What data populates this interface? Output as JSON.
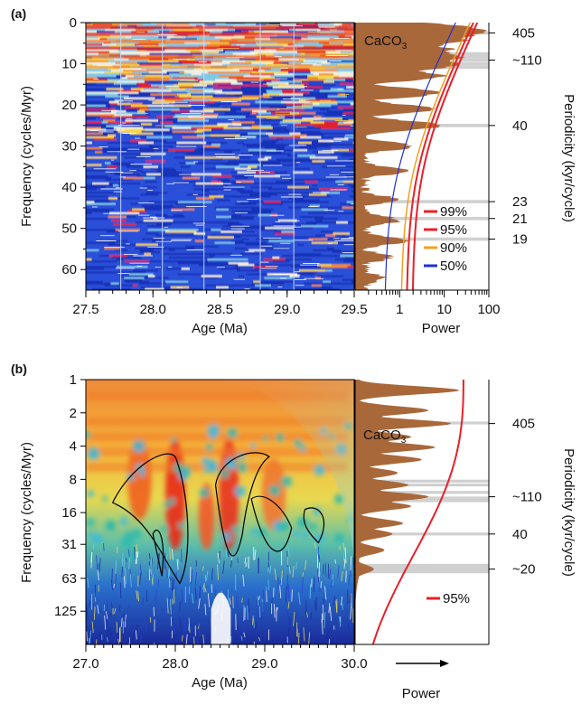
{
  "chart_data": [
    {
      "panel": "(a)",
      "type": "heatmap",
      "xlabel": "Age (Ma)",
      "ylabel": "Frequency (cycles/Myr)",
      "xticks": [
        "27.5",
        "28.0",
        "28.5",
        "29.0",
        "29.5"
      ],
      "xlim": [
        27.5,
        29.5
      ],
      "yticks": [
        "0",
        "10",
        "20",
        "30",
        "40",
        "50",
        "60"
      ],
      "ylim": [
        0,
        65
      ],
      "spectrum": {
        "label_main": "CaCO",
        "label_sub": "3",
        "xlabel": "Power",
        "xscale": "log",
        "xticks": [
          "1",
          "10",
          "100"
        ],
        "xlim": [
          0.1,
          100
        ],
        "confidence_levels": [
          {
            "name": "99%",
            "color": "#e8202a"
          },
          {
            "name": "95%",
            "color": "#e8202a"
          },
          {
            "name": "90%",
            "color": "#f0a020"
          },
          {
            "name": "50%",
            "color": "#2030d0"
          }
        ]
      },
      "right_axis": {
        "label": "Periodicity (kyr/cycle)",
        "ticks": [
          {
            "label": "405",
            "freq": 2.5
          },
          {
            "label": "~110",
            "freq": 9.1
          },
          {
            "label": "40",
            "freq": 25
          },
          {
            "label": "23",
            "freq": 43.5
          },
          {
            "label": "21",
            "freq": 47.6
          },
          {
            "label": "19",
            "freq": 52.6
          }
        ],
        "highlight_freqs": [
          2.5,
          7.6,
          8.3,
          9.1,
          10.0,
          10.8,
          25,
          43.5,
          47.6,
          52.6
        ]
      }
    },
    {
      "panel": "(b)",
      "type": "heatmap",
      "xlabel": "Age (Ma)",
      "ylabel": "Frequency (cycles/Myr)",
      "xticks": [
        "27.0",
        "28.0",
        "29.0",
        "30.0"
      ],
      "xlim": [
        27.0,
        30.0
      ],
      "yticks": [
        "1",
        "2",
        "4",
        "8",
        "16",
        "31",
        "63",
        "125"
      ],
      "yscale": "log",
      "ylim": [
        1,
        250
      ],
      "spectrum": {
        "label_main": "CaCO",
        "label_sub": "3",
        "xlabel": "Power",
        "arrow": "→",
        "confidence_levels": [
          {
            "name": "95%",
            "color": "#e8202a"
          }
        ]
      },
      "right_axis": {
        "label": "Periodicity (kyr/cycle)",
        "ticks": [
          {
            "label": "405",
            "freq": 2.5
          },
          {
            "label": "~110",
            "freq": 11.5
          },
          {
            "label": "40",
            "freq": 25
          },
          {
            "label": "~20",
            "freq": 52
          }
        ],
        "highlight_freqs": [
          2.47,
          8.3,
          9.0,
          10.5,
          11.8,
          12.5,
          25,
          48,
          50,
          52,
          55
        ]
      }
    }
  ]
}
